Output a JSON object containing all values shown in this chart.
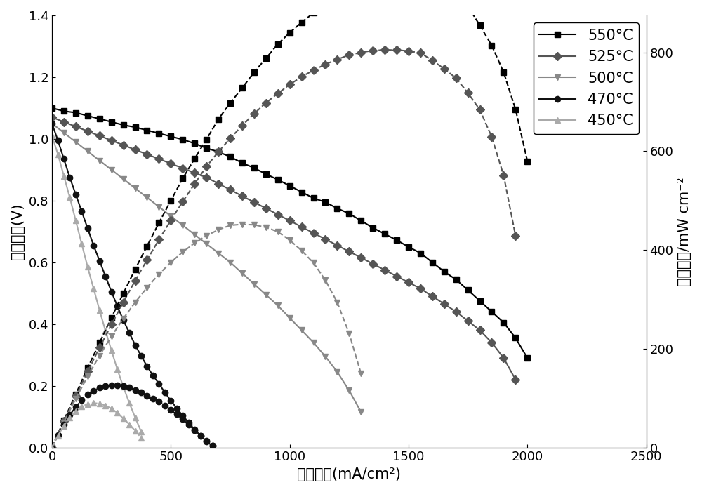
{
  "xlabel": "电流密度(mA/cm²)",
  "ylabel_left": "开路电压(V)",
  "ylabel_right": "功率密度/mW cm⁻²",
  "xlim": [
    0,
    2500
  ],
  "ylim_left": [
    0,
    1.4
  ],
  "ylim_right": [
    0,
    875
  ],
  "background_color": "#ffffff",
  "font_size": 15,
  "tick_font_size": 13,
  "marker_size": 6,
  "line_width": 1.5,
  "series": {
    "550C": {
      "label": "550°C",
      "color": "#000000",
      "marker": "s",
      "voltage_x": [
        0,
        50,
        100,
        150,
        200,
        250,
        300,
        350,
        400,
        450,
        500,
        550,
        600,
        650,
        700,
        750,
        800,
        850,
        900,
        950,
        1000,
        1050,
        1100,
        1150,
        1200,
        1250,
        1300,
        1350,
        1400,
        1450,
        1500,
        1550,
        1600,
        1650,
        1700,
        1750,
        1800,
        1850,
        1900,
        1950,
        2000
      ],
      "voltage_y": [
        1.1,
        1.09,
        1.085,
        1.075,
        1.065,
        1.055,
        1.045,
        1.038,
        1.028,
        1.018,
        1.008,
        0.998,
        0.985,
        0.97,
        0.958,
        0.942,
        0.922,
        0.906,
        0.886,
        0.868,
        0.848,
        0.828,
        0.808,
        0.795,
        0.775,
        0.758,
        0.735,
        0.712,
        0.692,
        0.672,
        0.65,
        0.63,
        0.6,
        0.57,
        0.544,
        0.51,
        0.475,
        0.44,
        0.405,
        0.355,
        0.29
      ],
      "power_x": [
        0,
        50,
        100,
        150,
        200,
        250,
        300,
        350,
        400,
        450,
        500,
        550,
        600,
        650,
        700,
        750,
        800,
        850,
        900,
        950,
        1000,
        1050,
        1100,
        1150,
        1200,
        1250,
        1300,
        1350,
        1400,
        1450,
        1500,
        1550,
        1600,
        1650,
        1700,
        1750,
        1800,
        1850,
        1900,
        1950,
        2000
      ],
      "power_y": [
        0,
        55,
        108,
        161,
        212,
        263,
        312,
        361,
        408,
        455,
        500,
        545,
        585,
        624,
        665,
        698,
        728,
        760,
        788,
        817,
        840,
        861,
        880,
        909,
        924,
        944,
        955,
        959,
        966,
        972,
        975,
        977,
        960,
        941,
        927,
        893,
        855,
        814,
        760,
        685,
        580
      ]
    },
    "525C": {
      "label": "525°C",
      "color": "#555555",
      "marker": "D",
      "voltage_x": [
        0,
        50,
        100,
        150,
        200,
        250,
        300,
        350,
        400,
        450,
        500,
        550,
        600,
        650,
        700,
        750,
        800,
        850,
        900,
        950,
        1000,
        1050,
        1100,
        1150,
        1200,
        1250,
        1300,
        1350,
        1400,
        1450,
        1500,
        1550,
        1600,
        1650,
        1700,
        1750,
        1800,
        1850,
        1900,
        1950
      ],
      "voltage_y": [
        1.07,
        1.055,
        1.04,
        1.025,
        1.01,
        0.995,
        0.98,
        0.965,
        0.95,
        0.935,
        0.92,
        0.905,
        0.89,
        0.875,
        0.855,
        0.835,
        0.815,
        0.795,
        0.775,
        0.755,
        0.735,
        0.715,
        0.695,
        0.675,
        0.655,
        0.635,
        0.615,
        0.595,
        0.575,
        0.555,
        0.535,
        0.515,
        0.49,
        0.465,
        0.44,
        0.41,
        0.38,
        0.34,
        0.29,
        0.22
      ],
      "power_x": [
        0,
        50,
        100,
        150,
        200,
        250,
        300,
        350,
        400,
        450,
        500,
        550,
        600,
        650,
        700,
        750,
        800,
        850,
        900,
        950,
        1000,
        1050,
        1100,
        1150,
        1200,
        1250,
        1300,
        1350,
        1400,
        1450,
        1500,
        1550,
        1600,
        1650,
        1700,
        1750,
        1800,
        1850,
        1900,
        1950
      ],
      "power_y": [
        0,
        53,
        104,
        154,
        202,
        249,
        294,
        338,
        380,
        421,
        460,
        498,
        534,
        569,
        599,
        626,
        652,
        676,
        698,
        717,
        735,
        751,
        764,
        776,
        786,
        795,
        800,
        804,
        805,
        805,
        803,
        799,
        784,
        767,
        748,
        718,
        684,
        629,
        551,
        429
      ]
    },
    "500C": {
      "label": "500°C",
      "color": "#888888",
      "marker": "v",
      "voltage_x": [
        0,
        50,
        100,
        150,
        200,
        250,
        300,
        350,
        400,
        450,
        500,
        550,
        600,
        650,
        700,
        750,
        800,
        850,
        900,
        950,
        1000,
        1050,
        1100,
        1150,
        1200,
        1250,
        1300
      ],
      "voltage_y": [
        1.05,
        1.02,
        0.99,
        0.96,
        0.93,
        0.9,
        0.87,
        0.84,
        0.81,
        0.78,
        0.75,
        0.72,
        0.69,
        0.66,
        0.63,
        0.6,
        0.565,
        0.53,
        0.495,
        0.46,
        0.42,
        0.38,
        0.34,
        0.295,
        0.245,
        0.185,
        0.115
      ],
      "power_x": [
        0,
        50,
        100,
        150,
        200,
        250,
        300,
        350,
        400,
        450,
        500,
        550,
        600,
        650,
        700,
        750,
        800,
        850,
        900,
        950,
        1000,
        1050,
        1100,
        1150,
        1200,
        1250,
        1300
      ],
      "power_y": [
        0,
        51,
        99,
        144,
        186,
        225,
        261,
        294,
        324,
        351,
        375,
        396,
        414,
        429,
        441,
        450,
        452,
        451,
        446,
        437,
        420,
        399,
        374,
        339,
        294,
        231,
        150
      ]
    },
    "470C": {
      "label": "470°C",
      "color": "#111111",
      "marker": "o",
      "voltage_x": [
        0,
        25,
        50,
        75,
        100,
        125,
        150,
        175,
        200,
        225,
        250,
        275,
        300,
        325,
        350,
        375,
        400,
        425,
        450,
        475,
        500,
        525,
        550,
        575,
        600,
        625,
        650,
        675
      ],
      "voltage_y": [
        1.05,
        0.995,
        0.935,
        0.875,
        0.82,
        0.765,
        0.71,
        0.655,
        0.605,
        0.555,
        0.505,
        0.458,
        0.413,
        0.372,
        0.332,
        0.297,
        0.263,
        0.233,
        0.207,
        0.178,
        0.152,
        0.127,
        0.103,
        0.08,
        0.058,
        0.038,
        0.02,
        0.005
      ],
      "power_x": [
        0,
        25,
        50,
        75,
        100,
        125,
        150,
        175,
        200,
        225,
        250,
        275,
        300,
        325,
        350,
        375,
        400,
        425,
        450,
        475,
        500,
        525,
        550,
        575,
        600,
        625,
        650,
        675
      ],
      "power_y": [
        0,
        25,
        47,
        66,
        82,
        96,
        107,
        115,
        121,
        125,
        126,
        126,
        124,
        121,
        116,
        111,
        105,
        99,
        93,
        85,
        76,
        67,
        57,
        46,
        35,
        24,
        13,
        3
      ]
    },
    "450C": {
      "label": "450°C",
      "color": "#aaaaaa",
      "marker": "^",
      "voltage_x": [
        0,
        25,
        50,
        75,
        100,
        125,
        150,
        175,
        200,
        225,
        250,
        275,
        300,
        325,
        350,
        375
      ],
      "voltage_y": [
        1.01,
        0.95,
        0.88,
        0.81,
        0.735,
        0.66,
        0.585,
        0.515,
        0.445,
        0.378,
        0.315,
        0.253,
        0.197,
        0.145,
        0.097,
        0.052
      ],
      "power_x": [
        0,
        25,
        50,
        75,
        100,
        125,
        150,
        175,
        200,
        225,
        250,
        275,
        300,
        325,
        350,
        375
      ],
      "power_y": [
        0,
        24,
        44,
        61,
        74,
        83,
        88,
        90,
        89,
        85,
        79,
        70,
        59,
        47,
        34,
        20
      ]
    }
  }
}
